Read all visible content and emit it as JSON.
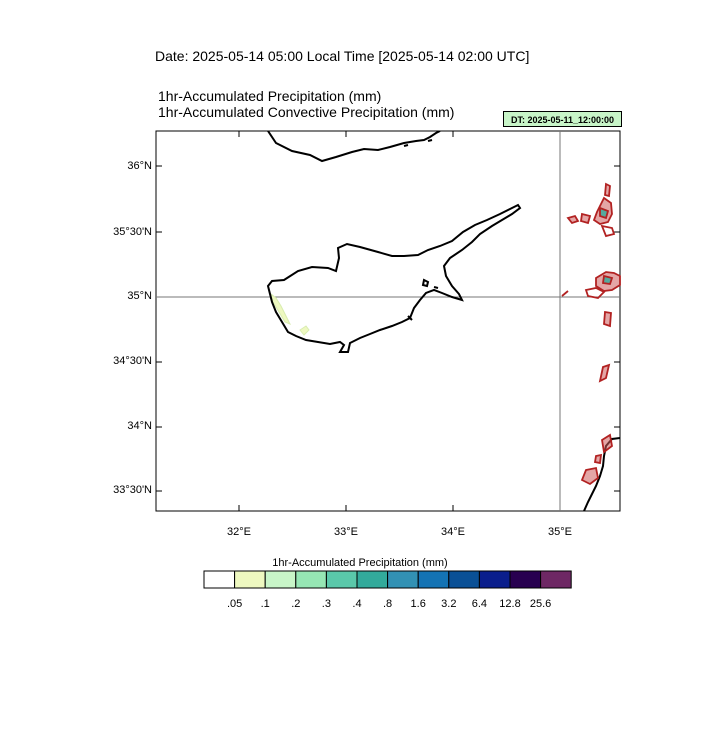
{
  "header": {
    "date_line": "Date: 2025-05-14  05:00 Local Time [2025-05-14  02:00 UTC]",
    "line1": "1hr-Accumulated Precipitation   (mm)",
    "line2": "1hr-Accumulated Convective Precipitation   (mm)",
    "dt_badge": "DT: 2025-05-11_12:00:00",
    "dt_badge_color": "#c8f5c8"
  },
  "map": {
    "lat_labels": [
      "36°N",
      "35°30'N",
      "35°N",
      "34°30'N",
      "34°N",
      "33°30'N"
    ],
    "lon_labels": [
      "32°E",
      "33°E",
      "34°E",
      "35°E"
    ],
    "reference_lines": [
      "35°N",
      "35°E"
    ],
    "convective_contour_color": "#b22222",
    "coastline_color": "#000000"
  },
  "colorbar": {
    "title": "1hr-Accumulated Precipitation  (mm)",
    "labels": [
      ".05",
      ".1",
      ".2",
      ".3",
      ".4",
      ".8",
      "1.6",
      "3.2",
      "6.4",
      "12.8",
      "25.6"
    ],
    "colors": [
      "#ffffff",
      "#eef8c0",
      "#c8f5c8",
      "#96e6b4",
      "#5ac8aa",
      "#32aa9b",
      "#3291b4",
      "#1473b4",
      "#0a5096",
      "#0a1e8c",
      "#280050",
      "#6e2864"
    ]
  }
}
